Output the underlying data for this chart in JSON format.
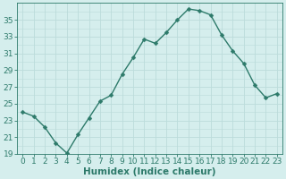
{
  "x": [
    0,
    1,
    2,
    3,
    4,
    5,
    6,
    7,
    8,
    9,
    10,
    11,
    12,
    13,
    14,
    15,
    16,
    17,
    18,
    19,
    20,
    21,
    22,
    23
  ],
  "y": [
    24.0,
    23.5,
    22.2,
    20.3,
    19.1,
    21.3,
    23.3,
    25.3,
    26.0,
    28.5,
    30.5,
    32.7,
    32.2,
    33.5,
    35.0,
    36.3,
    36.1,
    35.6,
    33.2,
    31.3,
    29.8,
    27.2,
    25.7,
    26.2
  ],
  "xlabel": "Humidex (Indice chaleur)",
  "ylim": [
    19,
    37
  ],
  "xlim": [
    -0.5,
    23.5
  ],
  "yticks": [
    19,
    21,
    23,
    25,
    27,
    29,
    31,
    33,
    35
  ],
  "xticks": [
    0,
    1,
    2,
    3,
    4,
    5,
    6,
    7,
    8,
    9,
    10,
    11,
    12,
    13,
    14,
    15,
    16,
    17,
    18,
    19,
    20,
    21,
    22,
    23
  ],
  "bg_color": "#d5eeed",
  "grid_color": "#bbdcdb",
  "line_color": "#2d7a6a",
  "marker_color": "#2d7a6a",
  "tick_color": "#2d7a6a",
  "label_color": "#2d7a6a",
  "xlabel_fontsize": 7.5,
  "tick_fontsize": 6.5,
  "line_width": 1.0,
  "marker_size": 2.5
}
